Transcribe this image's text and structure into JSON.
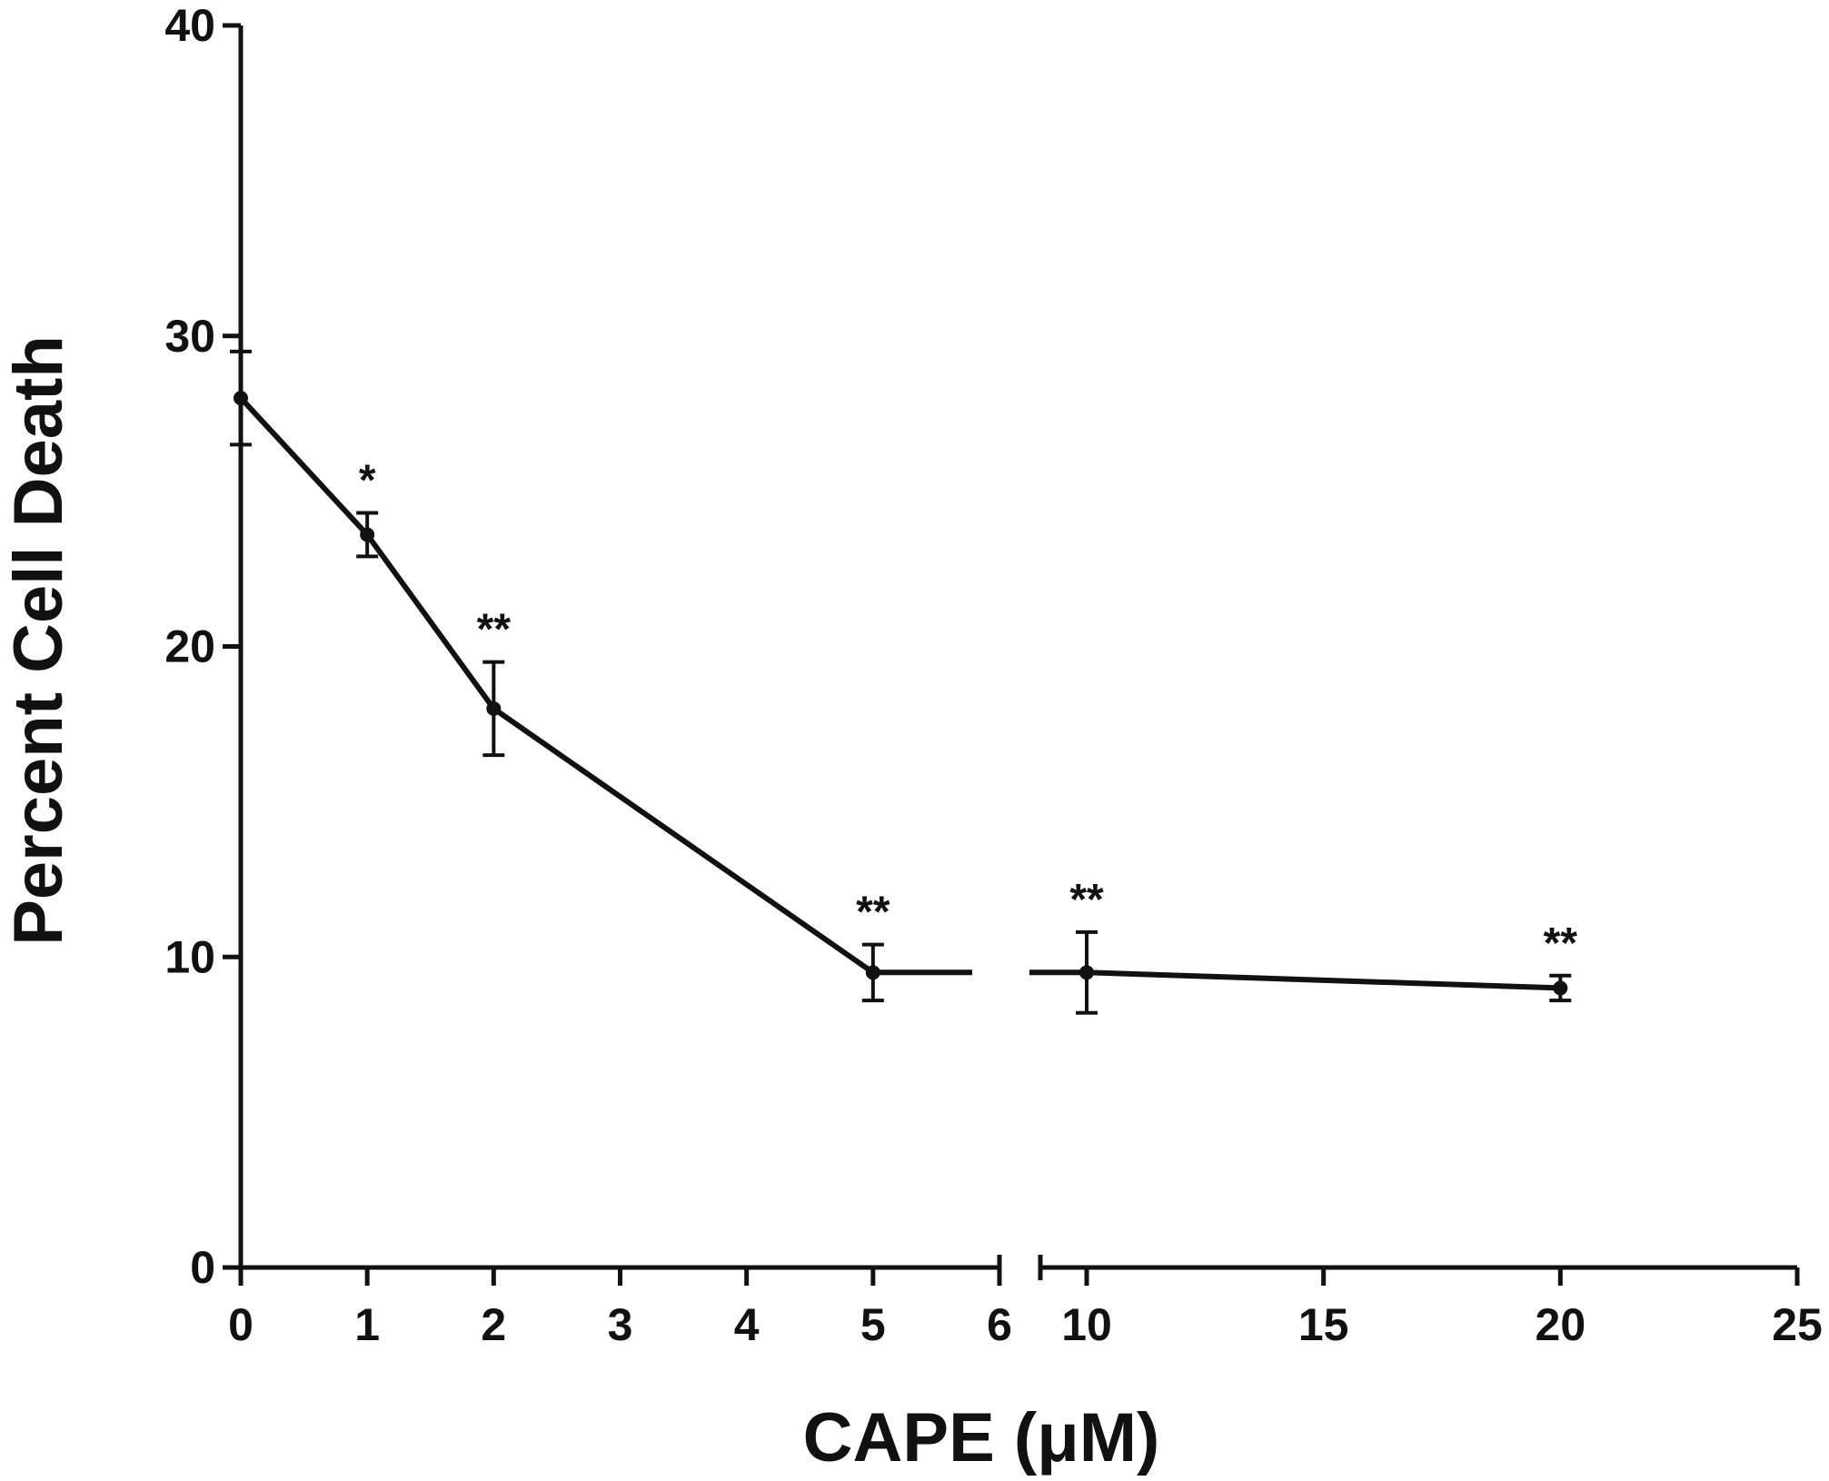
{
  "chart_data": {
    "type": "line",
    "title": "",
    "xlabel": "CAPE (μM)",
    "ylabel": "Percent Cell Death",
    "x_axis_break": true,
    "x_segments": [
      {
        "range": [
          0,
          6
        ],
        "ticks": [
          "0",
          "1",
          "2",
          "3",
          "4",
          "5",
          "6"
        ]
      },
      {
        "range": [
          8.5,
          25
        ],
        "ticks": [
          "10",
          "15",
          "20",
          "25"
        ]
      }
    ],
    "ylim": [
      0,
      40
    ],
    "y_ticks": [
      "0",
      "10",
      "20",
      "30",
      "40"
    ],
    "grid": false,
    "legend": "none",
    "series": [
      {
        "x": [
          0,
          1,
          2,
          5,
          10,
          20
        ],
        "y": [
          28,
          23.6,
          18,
          9.5,
          9.5,
          9
        ],
        "error": [
          1.5,
          0.7,
          1.5,
          0.9,
          1.3,
          0.4
        ],
        "annotations": [
          "",
          "*",
          "**",
          "**",
          "**",
          "**"
        ]
      }
    ],
    "colors": {
      "line": "#111111"
    }
  }
}
